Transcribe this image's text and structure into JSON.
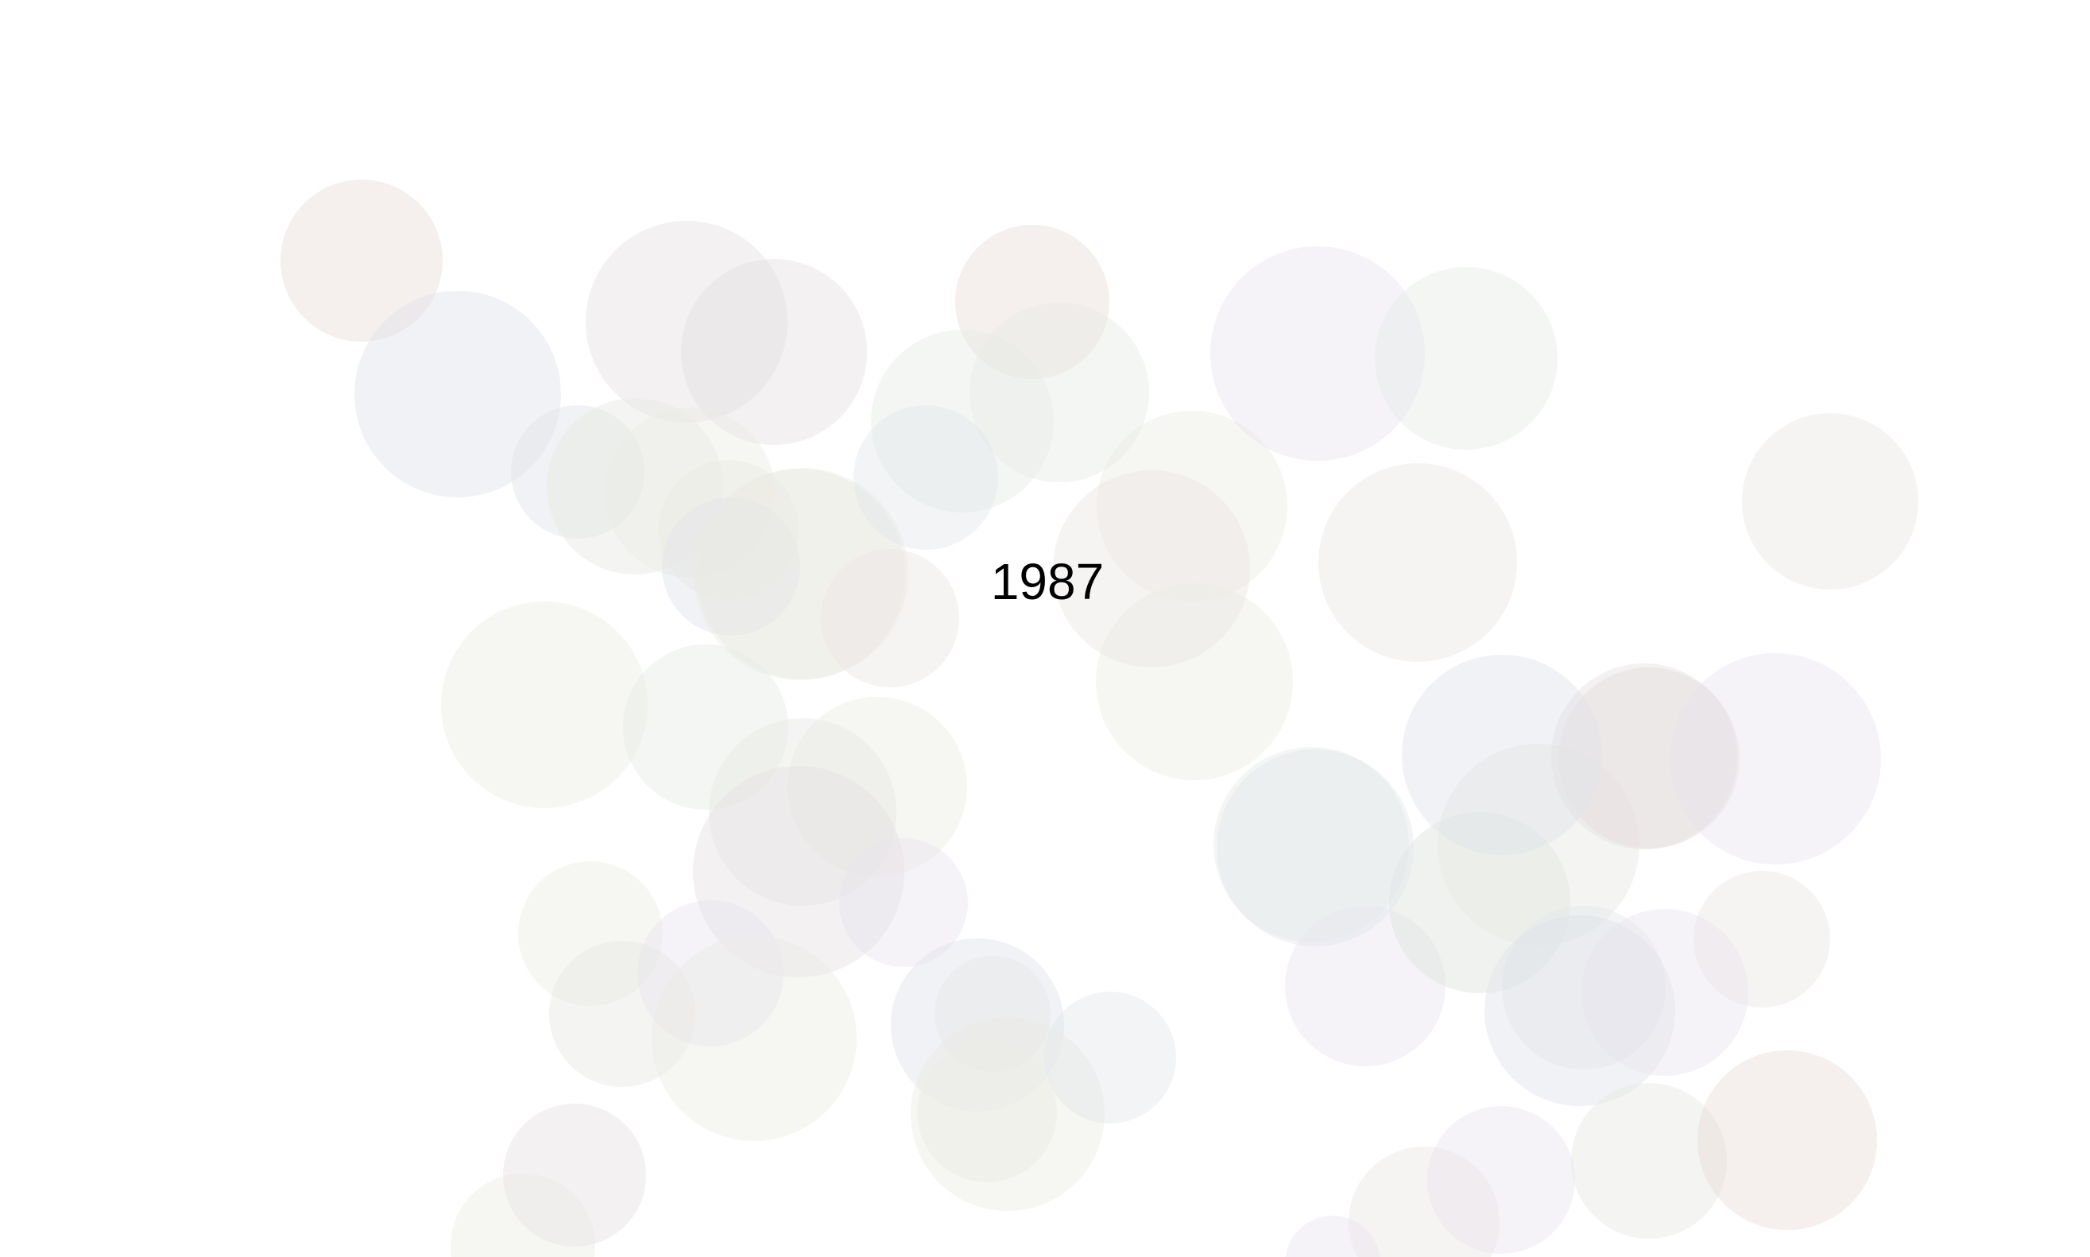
{
  "year_label": "1987",
  "colors": {
    "background": "#ffffff",
    "bubble_palette": [
      "#e9dcd8",
      "#dfe3e8",
      "#e4dfe2",
      "#e6e9e3",
      "#eceae4",
      "#e8e4ee",
      "#e7ebe6",
      "#e3e7ea",
      "#ece4e4",
      "#dde2dc"
    ]
  }
}
